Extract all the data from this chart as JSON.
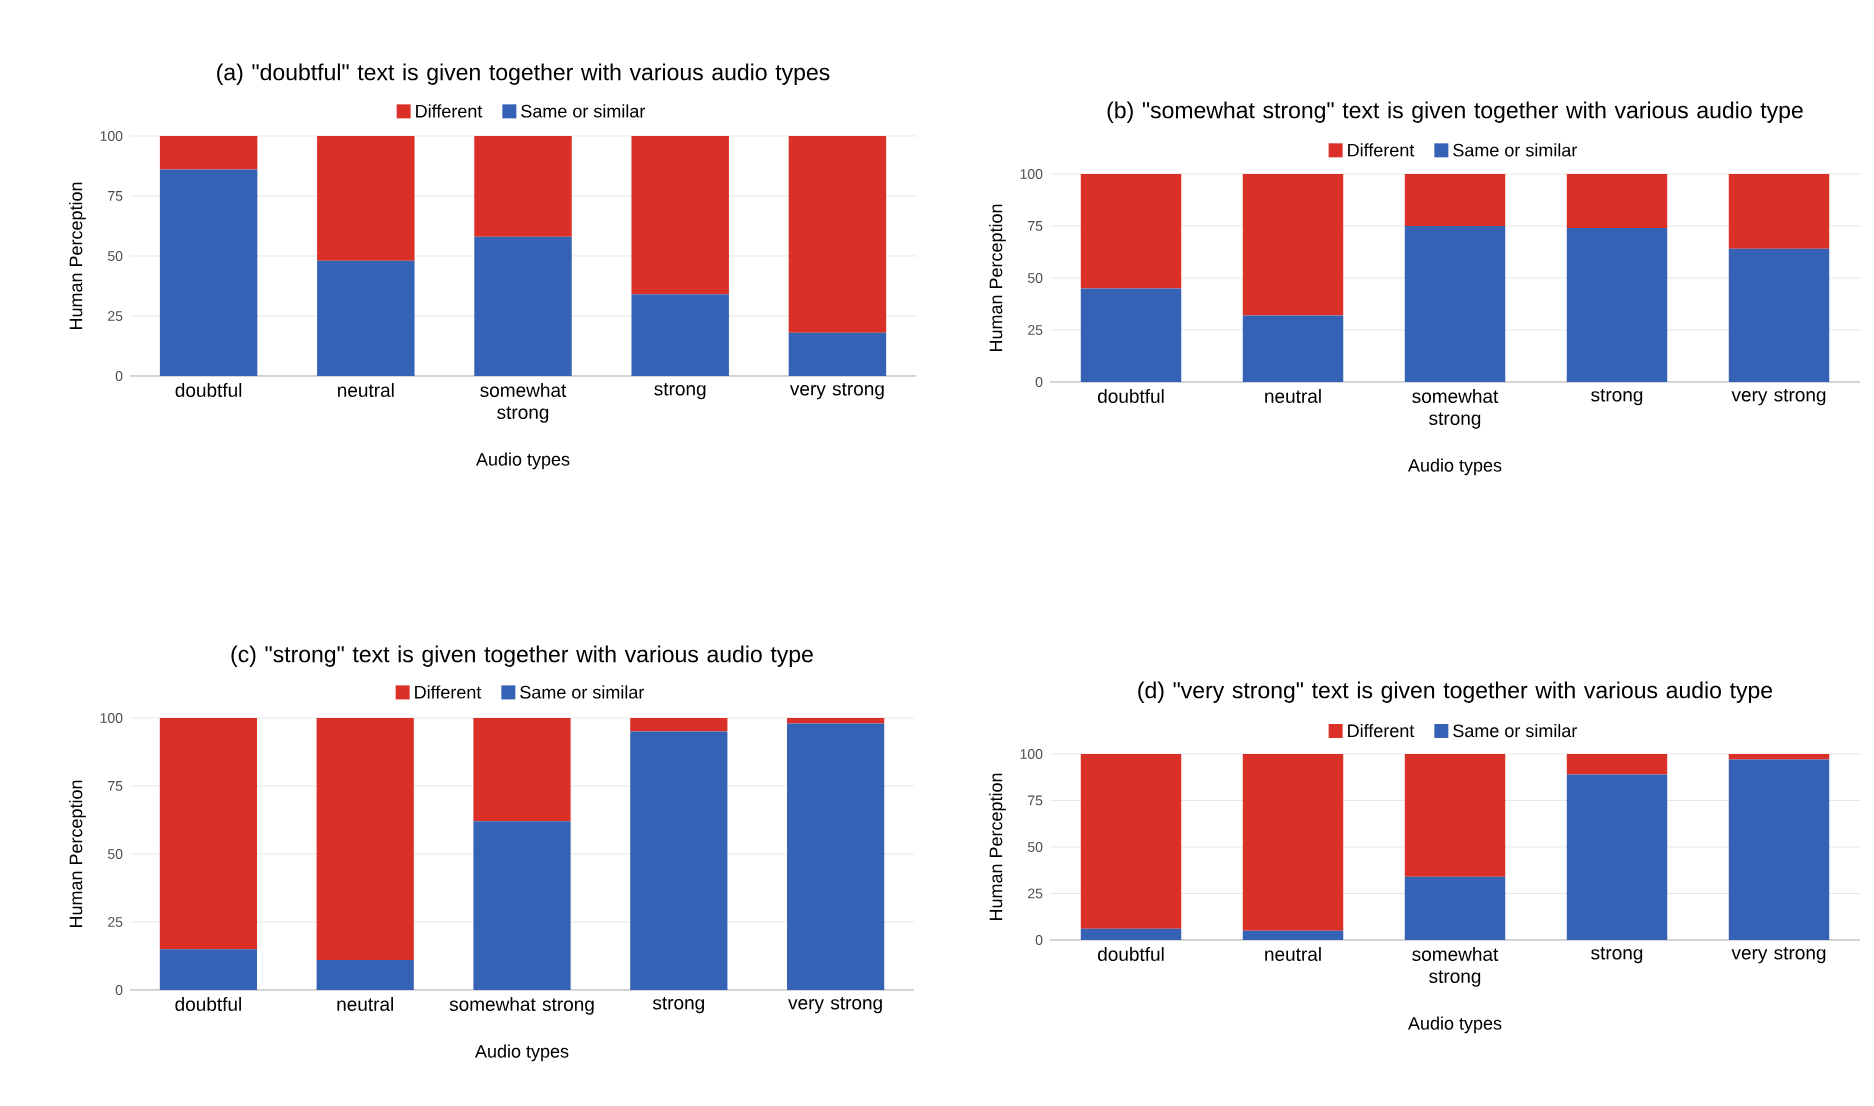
{
  "chart_data": [
    {
      "type": "bar",
      "stacked": true,
      "title": "(a) \"doubtful\" text is given together with various audio types",
      "xlabel": "Audio types",
      "ylabel": "Human Perception",
      "categories": [
        "doubtful",
        "neutral",
        "somewhat strong",
        "strong",
        "very strong"
      ],
      "series": [
        {
          "name": "Same or similar",
          "color": "#3562b5",
          "values": [
            86,
            48,
            58,
            34,
            18
          ]
        },
        {
          "name": "Different",
          "color": "#db3027",
          "values": [
            14,
            52,
            42,
            66,
            82
          ]
        }
      ],
      "ylim": [
        0,
        100
      ],
      "yticks": [
        0,
        25,
        50,
        75,
        100
      ],
      "grid": "y",
      "legend": "top"
    },
    {
      "type": "bar",
      "stacked": true,
      "title": "(b) \"somewhat strong\" text is given together with various audio type",
      "xlabel": "Audio types",
      "ylabel": "Human Perception",
      "categories": [
        "doubtful",
        "neutral",
        "somewhat strong",
        "strong",
        "very strong"
      ],
      "series": [
        {
          "name": "Same or similar",
          "color": "#3562b5",
          "values": [
            45,
            32,
            75,
            74,
            64
          ]
        },
        {
          "name": "Different",
          "color": "#db3027",
          "values": [
            55,
            68,
            25,
            26,
            36
          ]
        }
      ],
      "ylim": [
        0,
        100
      ],
      "yticks": [
        0,
        25,
        50,
        75,
        100
      ],
      "grid": "y",
      "legend": "top"
    },
    {
      "type": "bar",
      "stacked": true,
      "title": "(c) \"strong\" text is given together with various audio type",
      "xlabel": "Audio types",
      "ylabel": "Human Perception",
      "categories": [
        "doubtful",
        "neutral",
        "somewhat strong",
        "strong",
        "very strong"
      ],
      "series": [
        {
          "name": "Same or similar",
          "color": "#3562b5",
          "values": [
            15,
            11,
            62,
            95,
            98
          ]
        },
        {
          "name": "Different",
          "color": "#db3027",
          "values": [
            85,
            89,
            38,
            5,
            2
          ]
        }
      ],
      "ylim": [
        0,
        100
      ],
      "yticks": [
        0,
        25,
        50,
        75,
        100
      ],
      "grid": "y",
      "legend": "top"
    },
    {
      "type": "bar",
      "stacked": true,
      "title": "(d) \"very strong\" text is given together with various audio type",
      "xlabel": "Audio types",
      "ylabel": "Human Perception",
      "categories": [
        "doubtful",
        "neutral",
        "somewhat strong",
        "strong",
        "very strong"
      ],
      "series": [
        {
          "name": "Same or similar",
          "color": "#3562b5",
          "values": [
            6,
            5,
            34,
            89,
            97
          ]
        },
        {
          "name": "Different",
          "color": "#db3027",
          "values": [
            94,
            95,
            66,
            11,
            3
          ]
        }
      ],
      "ylim": [
        0,
        100
      ],
      "yticks": [
        0,
        25,
        50,
        75,
        100
      ],
      "grid": "y",
      "legend": "top"
    }
  ]
}
